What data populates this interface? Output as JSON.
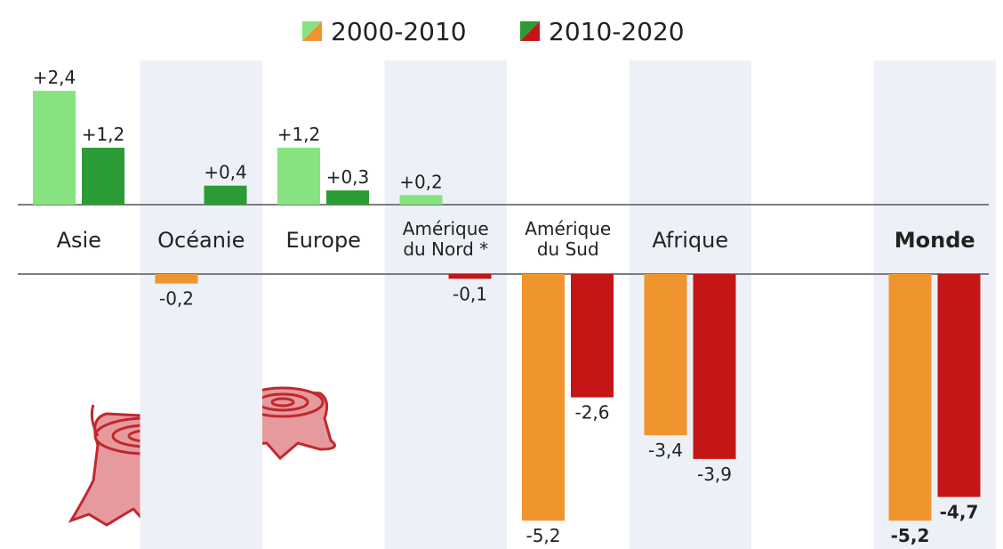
{
  "chart_data": {
    "type": "bar",
    "categories": [
      "Asie",
      "Océanie",
      "Europe",
      "Amérique\ndu Nord *",
      "Amérique\ndu Sud",
      "Afrique",
      "Monde"
    ],
    "series": [
      {
        "name": "2000-2010",
        "color": "#86e37f",
        "negative_color": "#f0942d",
        "values": [
          2.4,
          -0.2,
          1.2,
          0.2,
          -5.2,
          -3.4,
          -5.2
        ],
        "value_labels": [
          "+2,4",
          "-0,2",
          "+1,2",
          "+0,2",
          "-5,2",
          "-3,4",
          "-5,2"
        ]
      },
      {
        "name": "2010-2020",
        "color": "#2b9b35",
        "negative_color": "#c41616",
        "values": [
          1.2,
          0.4,
          0.3,
          -0.1,
          -2.6,
          -3.9,
          -4.7
        ],
        "value_labels": [
          "+1,2",
          "+0,4",
          "+0,3",
          "-0,1",
          "-2,6",
          "-3,9",
          "-4,7"
        ]
      }
    ]
  }
}
